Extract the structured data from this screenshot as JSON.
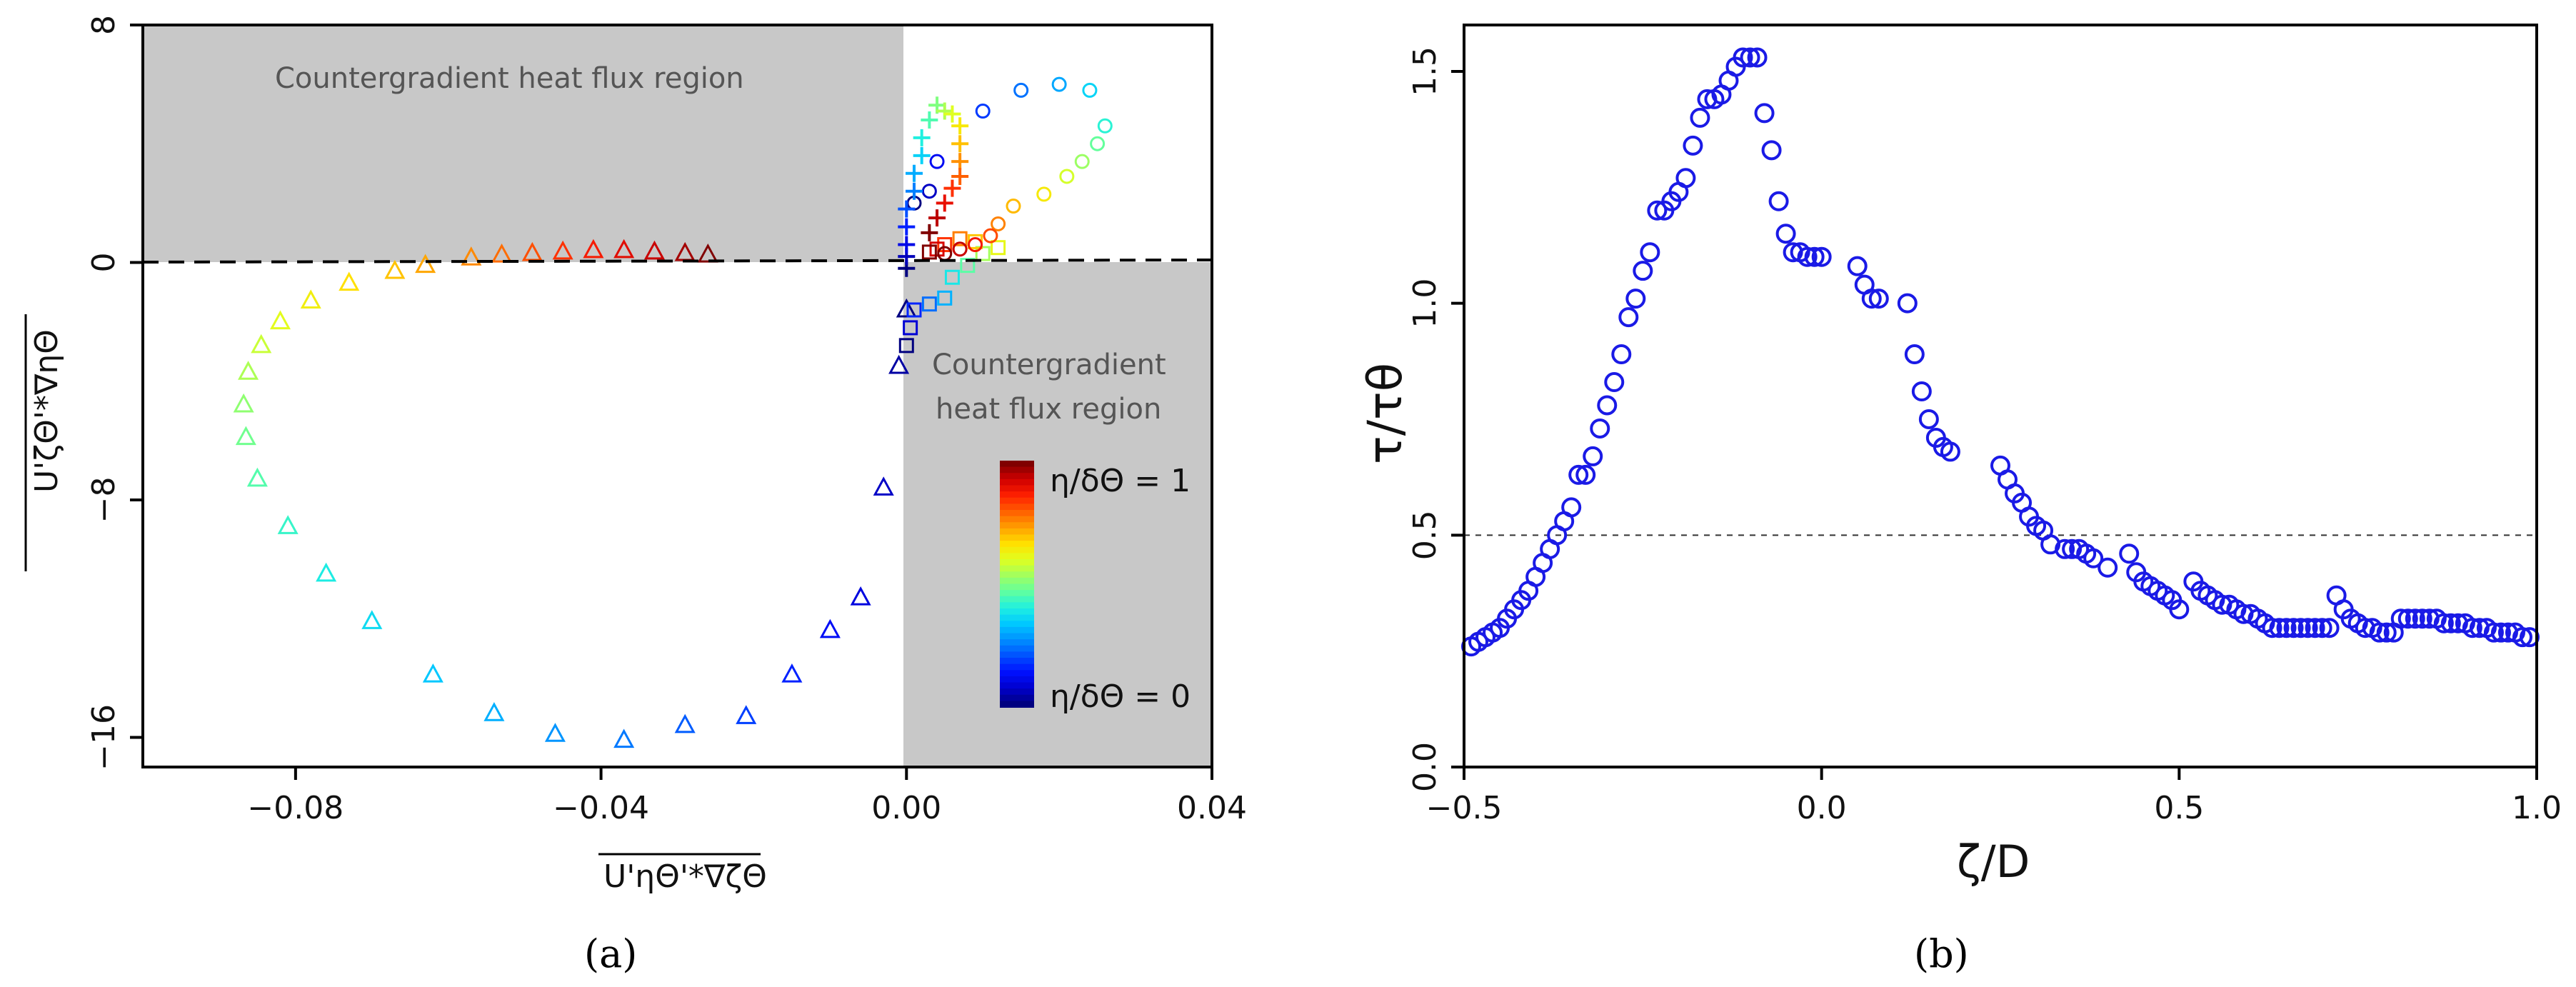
{
  "chart_data": [
    {
      "id": "a",
      "type": "scatter",
      "caption": "(a)",
      "xlabel": "U'ηΘ'*∇ζΘ",
      "ylabel": "U'ζΘ'*∇ηΘ",
      "xlim": [
        -0.1,
        0.04
      ],
      "ylim": [
        -17,
        8
      ],
      "xticks": [
        "−0.08",
        "−0.04",
        "0.00",
        "0.04"
      ],
      "xtick_values": [
        -0.08,
        -0.04,
        0.0,
        0.04
      ],
      "yticks": [
        "−16",
        "−8",
        "0",
        "8"
      ],
      "ytick_values": [
        -16,
        -8,
        0,
        8
      ],
      "regions": [
        {
          "label": "Countergradient heat flux region",
          "x": [
            -0.1,
            0.0
          ],
          "y": [
            0,
            8
          ]
        },
        {
          "label_line1": "Countergradient",
          "label_line2": "heat flux region",
          "x": [
            0.0,
            0.04
          ],
          "y": [
            -17,
            0
          ]
        }
      ],
      "colorbar": {
        "top_label": "η/δΘ = 1",
        "bottom_label": "η/δΘ = 0",
        "colors": [
          "#000080",
          "#0000cd",
          "#0010ff",
          "#0050ff",
          "#0090ff",
          "#00c8ff",
          "#20f0e0",
          "#60ffa0",
          "#a0ff60",
          "#e0ff20",
          "#ffe000",
          "#ffa000",
          "#ff6000",
          "#ff2000",
          "#d00000",
          "#800000"
        ]
      },
      "series": [
        {
          "name": "triangles",
          "marker": "triangle",
          "points": [
            [
              0.0,
              -1.6
            ],
            [
              -0.001,
              -3.5
            ],
            [
              -0.003,
              -7.6
            ],
            [
              -0.006,
              -11.3
            ],
            [
              -0.01,
              -12.4
            ],
            [
              -0.015,
              -13.9
            ],
            [
              -0.021,
              -15.3
            ],
            [
              -0.029,
              -15.6
            ],
            [
              -0.037,
              -16.1
            ],
            [
              -0.046,
              -15.9
            ],
            [
              -0.054,
              -15.2
            ],
            [
              -0.062,
              -13.9
            ],
            [
              -0.07,
              -12.1
            ],
            [
              -0.076,
              -10.5
            ],
            [
              -0.081,
              -8.9
            ],
            [
              -0.085,
              -7.3
            ],
            [
              -0.0865,
              -5.9
            ],
            [
              -0.0868,
              -4.8
            ],
            [
              -0.0862,
              -3.7
            ],
            [
              -0.0845,
              -2.8
            ],
            [
              -0.082,
              -2.0
            ],
            [
              -0.078,
              -1.3
            ],
            [
              -0.073,
              -0.7
            ],
            [
              -0.067,
              -0.3
            ],
            [
              -0.063,
              -0.1
            ],
            [
              -0.057,
              0.15
            ],
            [
              -0.053,
              0.25
            ],
            [
              -0.049,
              0.3
            ],
            [
              -0.045,
              0.35
            ],
            [
              -0.041,
              0.4
            ],
            [
              -0.037,
              0.4
            ],
            [
              -0.033,
              0.35
            ],
            [
              -0.029,
              0.3
            ],
            [
              -0.026,
              0.25
            ]
          ]
        },
        {
          "name": "squares",
          "marker": "square",
          "points": [
            [
              0.0,
              -2.8
            ],
            [
              0.0005,
              -2.2
            ],
            [
              0.001,
              -1.6
            ],
            [
              0.003,
              -1.4
            ],
            [
              0.005,
              -1.2
            ],
            [
              0.006,
              -0.5
            ],
            [
              0.008,
              -0.1
            ],
            [
              0.01,
              0.3
            ],
            [
              0.012,
              0.5
            ],
            [
              0.009,
              0.7
            ],
            [
              0.007,
              0.8
            ],
            [
              0.005,
              0.6
            ],
            [
              0.004,
              0.45
            ],
            [
              0.003,
              0.35
            ]
          ]
        },
        {
          "name": "circles",
          "marker": "circle",
          "points": [
            [
              0.001,
              2.0
            ],
            [
              0.003,
              2.4
            ],
            [
              0.004,
              3.4
            ],
            [
              0.01,
              5.1
            ],
            [
              0.015,
              5.8
            ],
            [
              0.02,
              6.0
            ],
            [
              0.024,
              5.8
            ],
            [
              0.026,
              4.6
            ],
            [
              0.025,
              4.0
            ],
            [
              0.023,
              3.4
            ],
            [
              0.021,
              2.9
            ],
            [
              0.018,
              2.3
            ],
            [
              0.014,
              1.9
            ],
            [
              0.012,
              1.3
            ],
            [
              0.011,
              0.9
            ],
            [
              0.009,
              0.6
            ],
            [
              0.007,
              0.45
            ],
            [
              0.005,
              0.3
            ]
          ]
        },
        {
          "name": "crosses",
          "marker": "cross",
          "points": [
            [
              0.0,
              -0.2
            ],
            [
              0.0,
              0.2
            ],
            [
              0.0,
              0.6
            ],
            [
              0.0,
              1.2
            ],
            [
              0.0,
              1.8
            ],
            [
              0.001,
              2.4
            ],
            [
              0.001,
              3.0
            ],
            [
              0.002,
              3.6
            ],
            [
              0.002,
              4.2
            ],
            [
              0.003,
              4.8
            ],
            [
              0.004,
              5.3
            ],
            [
              0.005,
              5.1
            ],
            [
              0.006,
              5.0
            ],
            [
              0.007,
              4.6
            ],
            [
              0.007,
              4.0
            ],
            [
              0.007,
              3.4
            ],
            [
              0.007,
              2.9
            ],
            [
              0.006,
              2.5
            ],
            [
              0.005,
              2.0
            ],
            [
              0.004,
              1.5
            ],
            [
              0.003,
              1.0
            ]
          ]
        }
      ]
    },
    {
      "id": "b",
      "type": "scatter",
      "caption": "(b)",
      "xlabel": "ζ/D",
      "ylabel": "τ/τθ",
      "xlim": [
        -0.5,
        1.0
      ],
      "ylim": [
        0.0,
        1.6
      ],
      "xticks": [
        "−0.5",
        "0.0",
        "0.5",
        "1.0"
      ],
      "xtick_values": [
        -0.5,
        0.0,
        0.5,
        1.0
      ],
      "yticks": [
        "0.0",
        "0.5",
        "1.0",
        "1.5"
      ],
      "ytick_values": [
        0.0,
        0.5,
        1.0,
        1.5
      ],
      "reference_line_y": 0.5,
      "marker_color": "#1a1ae6",
      "x": [
        -0.49,
        -0.48,
        -0.47,
        -0.46,
        -0.45,
        -0.44,
        -0.43,
        -0.42,
        -0.41,
        -0.4,
        -0.39,
        -0.38,
        -0.37,
        -0.36,
        -0.35,
        -0.34,
        -0.33,
        -0.32,
        -0.31,
        -0.3,
        -0.29,
        -0.28,
        -0.27,
        -0.26,
        -0.25,
        -0.24,
        -0.23,
        -0.22,
        -0.21,
        -0.2,
        -0.19,
        -0.18,
        -0.17,
        -0.16,
        -0.15,
        -0.14,
        -0.13,
        -0.12,
        -0.11,
        -0.1,
        -0.09,
        -0.08,
        -0.07,
        -0.06,
        -0.05,
        -0.04,
        -0.03,
        -0.02,
        -0.01,
        0.0,
        0.05,
        0.06,
        0.07,
        0.08,
        0.12,
        0.13,
        0.14,
        0.15,
        0.16,
        0.17,
        0.18,
        0.25,
        0.26,
        0.27,
        0.28,
        0.29,
        0.3,
        0.31,
        0.32,
        0.34,
        0.35,
        0.36,
        0.37,
        0.38,
        0.4,
        0.43,
        0.44,
        0.45,
        0.46,
        0.47,
        0.48,
        0.49,
        0.5,
        0.52,
        0.53,
        0.54,
        0.55,
        0.56,
        0.57,
        0.58,
        0.59,
        0.6,
        0.61,
        0.62,
        0.63,
        0.64,
        0.65,
        0.66,
        0.67,
        0.68,
        0.69,
        0.7,
        0.71,
        0.72,
        0.73,
        0.74,
        0.75,
        0.76,
        0.77,
        0.78,
        0.79,
        0.8,
        0.81,
        0.82,
        0.83,
        0.84,
        0.85,
        0.86,
        0.87,
        0.88,
        0.89,
        0.9,
        0.91,
        0.92,
        0.93,
        0.94,
        0.95,
        0.96,
        0.97,
        0.98,
        0.99
      ],
      "y": [
        0.26,
        0.27,
        0.28,
        0.29,
        0.3,
        0.32,
        0.34,
        0.36,
        0.38,
        0.41,
        0.44,
        0.47,
        0.5,
        0.53,
        0.56,
        0.63,
        0.63,
        0.67,
        0.73,
        0.78,
        0.83,
        0.89,
        0.97,
        1.01,
        1.07,
        1.11,
        1.2,
        1.2,
        1.22,
        1.24,
        1.27,
        1.34,
        1.4,
        1.44,
        1.44,
        1.45,
        1.48,
        1.51,
        1.53,
        1.53,
        1.53,
        1.41,
        1.33,
        1.22,
        1.15,
        1.11,
        1.11,
        1.1,
        1.1,
        1.1,
        1.08,
        1.04,
        1.01,
        1.01,
        1.0,
        0.89,
        0.81,
        0.75,
        0.71,
        0.69,
        0.68,
        0.65,
        0.62,
        0.59,
        0.57,
        0.54,
        0.52,
        0.51,
        0.48,
        0.47,
        0.47,
        0.47,
        0.46,
        0.45,
        0.43,
        0.46,
        0.42,
        0.4,
        0.39,
        0.38,
        0.37,
        0.36,
        0.34,
        0.4,
        0.38,
        0.37,
        0.36,
        0.35,
        0.35,
        0.34,
        0.33,
        0.33,
        0.32,
        0.31,
        0.3,
        0.3,
        0.3,
        0.3,
        0.3,
        0.3,
        0.3,
        0.3,
        0.3,
        0.37,
        0.34,
        0.32,
        0.31,
        0.3,
        0.3,
        0.29,
        0.29,
        0.29,
        0.32,
        0.32,
        0.32,
        0.32,
        0.32,
        0.32,
        0.31,
        0.31,
        0.31,
        0.31,
        0.3,
        0.3,
        0.3,
        0.29,
        0.29,
        0.29,
        0.29,
        0.28,
        0.28
      ]
    }
  ]
}
